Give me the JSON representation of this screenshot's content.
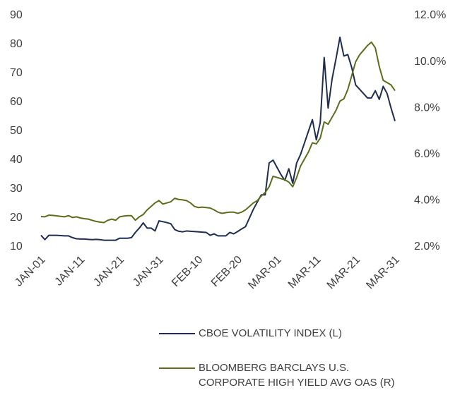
{
  "chart_data": {
    "type": "line",
    "categories": [
      "JAN-01",
      null,
      null,
      null,
      null,
      null,
      null,
      null,
      null,
      null,
      "JAN-11",
      null,
      null,
      null,
      null,
      null,
      null,
      null,
      null,
      null,
      "JAN-21",
      null,
      null,
      null,
      null,
      null,
      null,
      null,
      null,
      null,
      "JAN-31",
      null,
      null,
      null,
      null,
      null,
      null,
      null,
      null,
      null,
      "FEB-10",
      null,
      null,
      null,
      null,
      null,
      null,
      null,
      null,
      null,
      "FEB-20",
      null,
      null,
      null,
      null,
      null,
      null,
      null,
      null,
      null,
      "MAR-01",
      null,
      null,
      null,
      null,
      null,
      null,
      null,
      null,
      null,
      "MAR-11",
      null,
      null,
      null,
      null,
      null,
      null,
      null,
      null,
      null,
      "MAR-21",
      null,
      null,
      null,
      null,
      null,
      null,
      null,
      null,
      null,
      "MAR-31"
    ],
    "ylim": [
      10,
      90
    ],
    "yticks": [
      10,
      20,
      30,
      40,
      50,
      60,
      70,
      80,
      90
    ],
    "y2lim": [
      2,
      12
    ],
    "y2ticks": [
      {
        "value": 2,
        "label": "2.0%"
      },
      {
        "value": 4,
        "label": "4.0%"
      },
      {
        "value": 6,
        "label": "6.0%"
      },
      {
        "value": 8,
        "label": "8.0%"
      },
      {
        "value": 10,
        "label": "10.0%"
      },
      {
        "value": 12,
        "label": "12.0%"
      }
    ],
    "grid": false,
    "legend": "bottom",
    "series": [
      {
        "name": "CBOE VOLATILITY INDEX (L)",
        "color": "#1f2d4e",
        "axis": "y",
        "values": [
          14,
          12.5,
          14,
          14,
          14,
          13.9,
          13.8,
          13.8,
          13.2,
          12.8,
          12.7,
          12.7,
          12.6,
          12.5,
          12.6,
          12.5,
          12.3,
          12.3,
          12.3,
          12.3,
          13,
          13,
          13,
          13.2,
          15,
          16.5,
          18.3,
          16.5,
          16.5,
          15.5,
          19,
          18.7,
          18.4,
          18,
          16,
          15.4,
          15.2,
          15.5,
          15.4,
          15.3,
          15.2,
          15.1,
          15,
          14,
          14.5,
          13.8,
          13.8,
          13.8,
          15,
          14.5,
          15.3,
          16.2,
          17,
          20,
          23,
          25.5,
          28,
          28,
          39,
          40,
          37.5,
          35,
          33,
          37,
          32,
          39,
          42,
          46,
          50,
          54,
          47,
          53,
          75.5,
          58,
          68,
          75,
          82.5,
          76,
          76.5,
          72,
          66,
          64.5,
          63,
          61.5,
          61.5,
          64,
          61,
          65.5,
          63,
          58,
          53.5
        ]
      },
      {
        "name": "BLOOMBERG BARCLAYS U.S. CORPORATE HIGH YIELD AVG OAS (R)",
        "color": "#5b6e1c",
        "axis": "y2",
        "values": [
          3.31,
          3.3,
          3.37,
          3.36,
          3.34,
          3.32,
          3.3,
          3.35,
          3.27,
          3.3,
          3.25,
          3.22,
          3.2,
          3.15,
          3.1,
          3.07,
          3.05,
          3.15,
          3.2,
          3.15,
          3.3,
          3.33,
          3.35,
          3.35,
          3.15,
          3.3,
          3.4,
          3.6,
          3.75,
          3.9,
          4.0,
          3.85,
          3.9,
          3.95,
          4.1,
          4.05,
          4.03,
          4.0,
          3.9,
          3.75,
          3.7,
          3.72,
          3.7,
          3.68,
          3.6,
          3.5,
          3.45,
          3.48,
          3.5,
          3.5,
          3.45,
          3.5,
          3.6,
          3.75,
          3.9,
          4.0,
          4.2,
          4.35,
          4.6,
          5.05,
          5.0,
          4.95,
          4.9,
          4.8,
          4.6,
          5.0,
          5.5,
          5.8,
          6.1,
          6.5,
          6.45,
          6.7,
          7.4,
          7.3,
          7.6,
          7.9,
          8.3,
          8.4,
          8.8,
          9.4,
          10.0,
          10.3,
          10.5,
          10.7,
          10.85,
          10.6,
          9.8,
          9.2,
          9.1,
          9.0,
          8.75
        ]
      }
    ]
  }
}
